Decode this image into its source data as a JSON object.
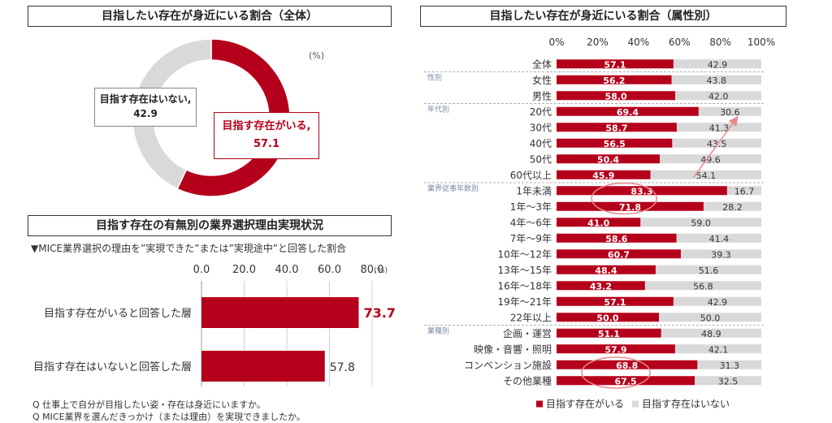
{
  "panel_donut": {
    "title": "目指したい存在が身近にいる割合（全体）",
    "unit": "(%)"
  },
  "panel_reason": {
    "title": "目指す存在の有無別の業界選択理由実現状況",
    "subtitle": "▼MICE業界選択の理由を”実現できた”または”実現途中”と回答した割合",
    "unit": "(%)"
  },
  "panel_attr": {
    "title": "目指したい存在が身近にいる割合（属性別）"
  },
  "footnotes": [
    "Q 仕事上で自分が目指したい姿・存在は身近にいますか。",
    "Q MICE業界を選んだきっかけ（または理由）を実現できましたか。"
  ],
  "colors": {
    "red": "#b5001b",
    "gray": "#d9d9d9",
    "annotation": "#e88a8a",
    "group": "#7a8aa6"
  },
  "chart_data": [
    {
      "type": "pie",
      "title": "目指したい存在が身近にいる割合（全体）",
      "slices": [
        {
          "label": "目指す存在がいる,",
          "value": 57.1,
          "color": "#b5001b"
        },
        {
          "label": "目指す存在はいない,",
          "value": 42.9,
          "color": "#d9d9d9"
        }
      ]
    },
    {
      "type": "bar",
      "orientation": "horizontal",
      "title": "目指す存在の有無別の業界選択理由実現状況",
      "categories": [
        "目指す存在がいると回答した層",
        "目指す存在はいないと回答した層"
      ],
      "values": [
        73.7,
        57.8
      ],
      "ticks": [
        "0.0",
        "20.0",
        "40.0",
        "60.0",
        "80.0"
      ],
      "xlim": [
        0,
        80
      ]
    },
    {
      "type": "bar",
      "orientation": "horizontal",
      "stacked": true,
      "title": "目指したい存在が身近にいる割合（属性別）",
      "ticks": [
        "0%",
        "20%",
        "40%",
        "60%",
        "80%",
        "100%"
      ],
      "xlim": [
        0,
        100
      ],
      "legend": {
        "position": "bottom",
        "items": [
          "目指す存在がいる",
          "目指す存在はいない"
        ]
      },
      "categories": [
        "全体",
        "女性",
        "男性",
        "20代",
        "30代",
        "40代",
        "50代",
        "60代以上",
        "1年未満",
        "1年～3年",
        "4年～6年",
        "7年～9年",
        "10年～12年",
        "13年～15年",
        "16年～18年",
        "19年～21年",
        "22年以上",
        "企画・運営",
        "映像・音響・照明",
        "コンベンション施設",
        "その他業種"
      ],
      "series": [
        {
          "name": "目指す存在がいる",
          "values": [
            57.1,
            56.2,
            58.0,
            69.4,
            58.7,
            56.5,
            50.4,
            45.9,
            83.3,
            71.8,
            41.0,
            58.6,
            60.7,
            48.4,
            43.2,
            57.1,
            50.0,
            51.1,
            57.9,
            68.8,
            67.5
          ]
        },
        {
          "name": "目指す存在はいない",
          "values": [
            42.9,
            43.8,
            42.0,
            30.6,
            41.3,
            43.5,
            49.6,
            54.1,
            16.7,
            28.2,
            59.0,
            41.4,
            39.3,
            51.6,
            56.8,
            42.9,
            50.0,
            48.9,
            42.1,
            31.3,
            32.5
          ]
        }
      ],
      "groups": [
        {
          "label": "性別",
          "start": 1
        },
        {
          "label": "年代別",
          "start": 3
        },
        {
          "label": "業界従事年数別",
          "start": 8
        },
        {
          "label": "業種別",
          "start": 17
        }
      ]
    }
  ]
}
